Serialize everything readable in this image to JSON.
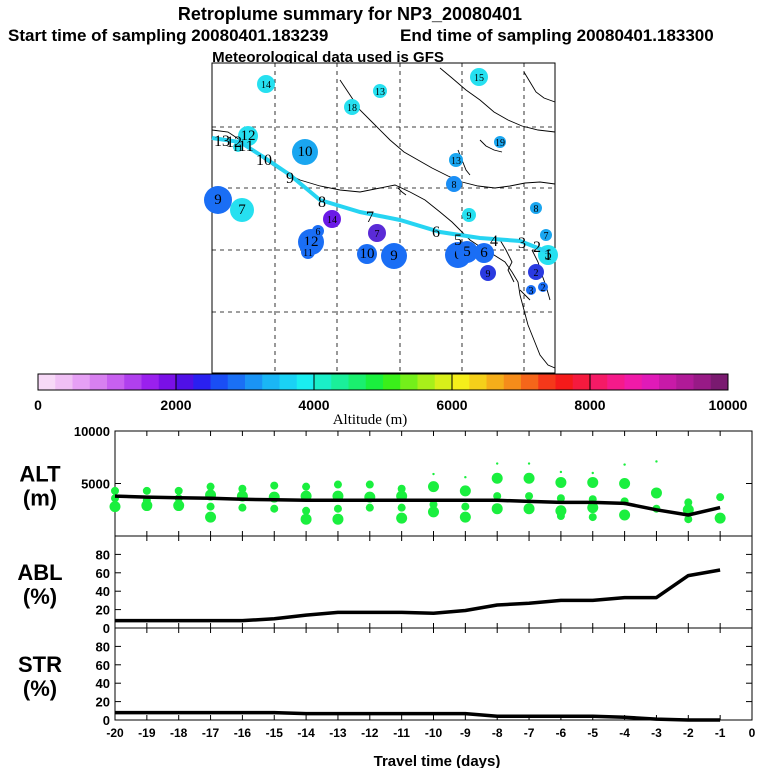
{
  "header": {
    "title": "Retroplume summary for NP3_20080401",
    "start": "Start time of sampling 20080401.183239",
    "end": "End time of sampling 20080401.183300",
    "met": "Meteorological data used is GFS"
  },
  "chart_data": [
    {
      "type": "scatter",
      "title": "Retroplume positions (map)",
      "description_labels": "numbers are days of travel time before sampling",
      "points": [
        {
          "label": "14",
          "color": "#26e0f0"
        },
        {
          "label": "13",
          "color": "#26e0f0"
        },
        {
          "label": "18",
          "color": "#26e0f0"
        },
        {
          "label": "15",
          "color": "#26e0f0"
        },
        {
          "label": "12",
          "color": "#26e0f0"
        },
        {
          "label": "11",
          "color": "#26e0f0"
        },
        {
          "label": "10",
          "color": "#1aa6f0"
        },
        {
          "label": "19",
          "color": "#1aa6f0"
        },
        {
          "label": "9",
          "color": "#1a6ef5"
        },
        {
          "label": "7",
          "color": "#26e0f0"
        },
        {
          "label": "12",
          "color": "#1a6ef5"
        },
        {
          "label": "11",
          "color": "#1a6ef5"
        },
        {
          "label": "14",
          "color": "#6a1ae6"
        },
        {
          "label": "7",
          "color": "#5a2ad6"
        },
        {
          "label": "6",
          "color": "#1a6ef5"
        },
        {
          "label": "10",
          "color": "#1a6ef5"
        },
        {
          "label": "9",
          "color": "#1a6ef5"
        },
        {
          "label": "6",
          "color": "#1a6ef5"
        },
        {
          "label": "5",
          "color": "#1a6ef5"
        },
        {
          "label": "6",
          "color": "#1a6ef5"
        },
        {
          "label": "9",
          "color": "#2a3ae0"
        },
        {
          "label": "8",
          "color": "#1a8ef5"
        },
        {
          "label": "9",
          "color": "#26e0f0"
        },
        {
          "label": "8",
          "color": "#1aa6f0"
        },
        {
          "label": "7",
          "color": "#1aa6f0"
        },
        {
          "label": "5",
          "color": "#26e0f0"
        },
        {
          "label": "2",
          "color": "#2a3ae0"
        },
        {
          "label": "3",
          "color": "#1a6ef5"
        },
        {
          "label": "2",
          "color": "#1a6ef5"
        },
        {
          "label": "13",
          "color": "#1aa6f0"
        }
      ],
      "track_labels": [
        "13",
        "12",
        "11",
        "10",
        "9",
        "8",
        "7",
        "6",
        "5",
        "4",
        "3",
        "2",
        "1"
      ],
      "track_color": "#26d4f2"
    },
    {
      "type": "colorbar",
      "xlabel": "Altitude (m)",
      "ticks": [
        0,
        2000,
        4000,
        6000,
        8000,
        10000
      ],
      "range": [
        0,
        10000
      ],
      "colors": [
        "#f7d9f7",
        "#f0c0f5",
        "#e6a0f5",
        "#d880f0",
        "#c860f0",
        "#b040ee",
        "#9a20ee",
        "#7a10e6",
        "#5010e6",
        "#2a20f0",
        "#1a4ef5",
        "#1a70f5",
        "#1a94f5",
        "#1ab6f5",
        "#1ad2f5",
        "#1aeef0",
        "#1aefc8",
        "#1aef9a",
        "#1aef6e",
        "#1aef3e",
        "#3aef1a",
        "#74ef1a",
        "#a8ef1a",
        "#d8ef1a",
        "#f5ee1a",
        "#f5d01a",
        "#f5ae1a",
        "#f58c1a",
        "#f5661a",
        "#f5381a",
        "#f51a1a",
        "#f51a3e",
        "#f51a66",
        "#f51a8a",
        "#f01aa8",
        "#e01ab8",
        "#c81aa8",
        "#b01a98",
        "#981a86",
        "#7a1a70"
      ]
    },
    {
      "type": "line",
      "ylabel": "ALT\n(m)",
      "ylabel_lines": [
        "ALT",
        "(m)"
      ],
      "x": [
        -20,
        -19,
        -18,
        -17,
        -16,
        -15,
        -14,
        -13,
        -12,
        -11,
        -10,
        -9,
        -8,
        -7,
        -6,
        -5,
        -4,
        -3,
        -2,
        -1
      ],
      "values": [
        3800,
        3700,
        3650,
        3600,
        3500,
        3450,
        3400,
        3400,
        3400,
        3400,
        3400,
        3400,
        3400,
        3300,
        3200,
        3200,
        3100,
        2500,
        2000,
        2700
      ],
      "ylim": [
        0,
        10000
      ],
      "yticks": [
        5000,
        10000
      ],
      "spread_color": "#1aef3e",
      "spread": [
        {
          "x": -20,
          "y": [
            3600,
            2800,
            4300
          ]
        },
        {
          "x": -19,
          "y": [
            3400,
            2900,
            4300
          ]
        },
        {
          "x": -18,
          "y": [
            3600,
            2900,
            4300
          ]
        },
        {
          "x": -17,
          "y": [
            4700,
            3900,
            2800,
            1800
          ]
        },
        {
          "x": -16,
          "y": [
            4500,
            3800,
            2700
          ]
        },
        {
          "x": -15,
          "y": [
            4800,
            3700,
            2600
          ]
        },
        {
          "x": -14,
          "y": [
            4700,
            3800,
            2400,
            1600
          ]
        },
        {
          "x": -13,
          "y": [
            4900,
            3800,
            2600,
            1600
          ]
        },
        {
          "x": -12,
          "y": [
            4900,
            3700,
            2700
          ]
        },
        {
          "x": -11,
          "y": [
            4500,
            3800,
            2700,
            1700
          ]
        },
        {
          "x": -10,
          "y": [
            5900,
            4700,
            3000,
            2300
          ]
        },
        {
          "x": -9,
          "y": [
            5600,
            4300,
            2800,
            1800
          ]
        },
        {
          "x": -8,
          "y": [
            6900,
            5500,
            3800,
            2600
          ]
        },
        {
          "x": -7,
          "y": [
            6900,
            5500,
            3800,
            2600
          ]
        },
        {
          "x": -6,
          "y": [
            6100,
            5100,
            3600,
            2400,
            1900
          ]
        },
        {
          "x": -5,
          "y": [
            6000,
            5100,
            3500,
            2700,
            1800
          ]
        },
        {
          "x": -4,
          "y": [
            6800,
            5000,
            3300,
            2000
          ]
        },
        {
          "x": -3,
          "y": [
            7100,
            4100,
            2600
          ]
        },
        {
          "x": -2,
          "y": [
            3200,
            2500,
            1600
          ]
        },
        {
          "x": -1,
          "y": [
            3700,
            1700
          ]
        }
      ]
    },
    {
      "type": "line",
      "ylabel_lines": [
        "ABL",
        "(%)"
      ],
      "x": [
        -20,
        -19,
        -18,
        -17,
        -16,
        -15,
        -14,
        -13,
        -12,
        -11,
        -10,
        -9,
        -8,
        -7,
        -6,
        -5,
        -4,
        -3,
        -2,
        -1
      ],
      "values": [
        8,
        8,
        8,
        8,
        8,
        10,
        14,
        17,
        17,
        17,
        16,
        19,
        25,
        27,
        30,
        30,
        33,
        33,
        57,
        63
      ],
      "ylim": [
        0,
        100
      ],
      "yticks": [
        0,
        20,
        40,
        60,
        80
      ]
    },
    {
      "type": "line",
      "ylabel_lines": [
        "STR",
        "(%)"
      ],
      "x": [
        -20,
        -19,
        -18,
        -17,
        -16,
        -15,
        -14,
        -13,
        -12,
        -11,
        -10,
        -9,
        -8,
        -7,
        -6,
        -5,
        -4,
        -3,
        -2,
        -1
      ],
      "values": [
        8,
        8,
        8,
        8,
        8,
        8,
        7,
        7,
        7,
        7,
        7,
        7,
        4,
        4,
        4,
        4,
        3,
        1,
        0,
        0
      ],
      "ylim": [
        0,
        100
      ],
      "yticks": [
        0,
        20,
        40,
        60,
        80
      ],
      "xticks": [
        -20,
        -19,
        -18,
        -17,
        -16,
        -15,
        -14,
        -13,
        -12,
        -11,
        -10,
        -9,
        -8,
        -7,
        -6,
        -5,
        -4,
        -3,
        -2,
        -1,
        0
      ],
      "xlim": [
        -20,
        0
      ],
      "xlabel": "Travel time (days)"
    }
  ]
}
